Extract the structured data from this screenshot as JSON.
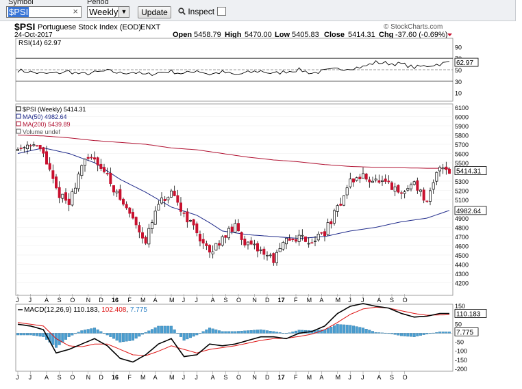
{
  "toolbar": {
    "symbol_label": "Symbol",
    "symbol_value": "$PSI",
    "clear_glyph": "×",
    "period_label": "Period",
    "period_value": "Weekly",
    "update_label": "Update",
    "inspect_label": "Inspect",
    "inspect_checked": false
  },
  "header": {
    "symbol": "$PSI",
    "name": "Portuguese Stock Index (EOD)",
    "exchange": "ENXT",
    "date": "24-Oct-2017",
    "open_label": "Open",
    "open_value": "5458.79",
    "high_label": "High",
    "high_value": "5470.00",
    "low_label": "Low",
    "low_value": "5405.83",
    "close_label": "Close",
    "close_value": "5414.31",
    "chg_label": "Chg",
    "chg_value": "-37.60 (-0.69%)",
    "watermark": "© StockCharts.com"
  },
  "colors": {
    "up_candle": "#ffffff",
    "down_candle": "#c8102e",
    "ma50": "#1f2a8a",
    "ma200": "#b01030",
    "macd_line": "#000000",
    "signal_line": "#dd1111",
    "histogram": "#4a9ed1",
    "macd_value_color": "#dd1111",
    "hist_value_color": "#2a7fc4"
  },
  "chart_data": [
    {
      "type": "line",
      "panel": "rsi",
      "label": "RSI(14) 62.97",
      "current_value": 62.97,
      "current_value_label": "62.97",
      "ylim": [
        0,
        100
      ],
      "reference_lines": [
        70,
        50,
        30
      ],
      "y_ticks": [
        90,
        70,
        50,
        30,
        10
      ],
      "x_weeks": [
        0,
        4,
        8,
        12,
        16,
        20,
        24,
        28,
        32,
        36,
        40,
        44,
        48,
        52,
        56,
        60,
        64,
        68,
        72,
        76,
        80,
        84,
        88,
        92,
        96,
        100,
        104,
        108,
        112,
        116,
        120,
        124,
        128,
        132,
        135
      ],
      "values": [
        49,
        46,
        43,
        44,
        47,
        42,
        45,
        48,
        44,
        46,
        41,
        45,
        47,
        43,
        49,
        42,
        46,
        41,
        45,
        48,
        43,
        47,
        50,
        44,
        48,
        51,
        53,
        55,
        63,
        61,
        60,
        54,
        57,
        60,
        63
      ]
    },
    {
      "type": "candlestick",
      "panel": "price",
      "legend": [
        {
          "name": "$PSI (Weekly) 5414.31",
          "color": "#000000"
        },
        {
          "name": "MA(50) 4982.64",
          "color": "#1f2a8a"
        },
        {
          "name": "MA(200) 5439.89",
          "color": "#b01030"
        },
        {
          "name": "Volume undef",
          "color": "#555555"
        }
      ],
      "ylim": [
        4100,
        6100
      ],
      "y_ticks": [
        6100,
        6000,
        5900,
        5800,
        5700,
        5600,
        5500,
        5400,
        5300,
        5200,
        5100,
        5000,
        4900,
        4800,
        4700,
        4600,
        4500,
        4400,
        4300,
        4200
      ],
      "value_tags": [
        {
          "value": 5414.31,
          "label": "5414.31"
        },
        {
          "value": 4982.64,
          "label": "4982.64"
        }
      ],
      "close_waypoints_weeks": [
        0,
        4,
        8,
        12,
        16,
        20,
        24,
        28,
        32,
        36,
        40,
        44,
        48,
        52,
        56,
        60,
        64,
        68,
        72,
        76,
        80,
        84,
        88,
        92,
        96,
        100,
        104,
        108,
        112,
        116,
        120,
        124,
        128,
        132,
        135
      ],
      "close_waypoints": [
        5650,
        5720,
        5600,
        5200,
        5050,
        5480,
        5560,
        5350,
        5100,
        4900,
        4650,
        5050,
        5150,
        4950,
        4750,
        4500,
        4700,
        4800,
        4600,
        4550,
        4450,
        4650,
        4700,
        4650,
        4750,
        5000,
        5300,
        5350,
        5300,
        5250,
        5150,
        5300,
        5050,
        5480,
        5414
      ],
      "ma50": {
        "x_weeks": [
          0,
          8,
          16,
          24,
          32,
          40,
          48,
          56,
          60,
          64,
          72,
          80,
          88,
          96,
          104,
          112,
          120,
          128,
          135
        ],
        "values": [
          5600,
          5660,
          5600,
          5500,
          5320,
          5180,
          5020,
          4930,
          4850,
          4760,
          4720,
          4700,
          4680,
          4700,
          4760,
          4800,
          4860,
          4900,
          4982.64
        ]
      },
      "ma200": {
        "x_weeks": [
          0,
          8,
          16,
          24,
          32,
          40,
          48,
          56,
          64,
          72,
          80,
          88,
          96,
          104,
          112,
          120,
          128,
          135
        ],
        "values": [
          5800,
          5790,
          5770,
          5740,
          5720,
          5700,
          5660,
          5640,
          5600,
          5560,
          5530,
          5510,
          5480,
          5460,
          5450,
          5445,
          5440,
          5439.89
        ]
      }
    },
    {
      "type": "line",
      "panel": "macd",
      "label_prefix": "MACD(12,26,9)",
      "macd_label": "110.183",
      "signal_label": "102.408",
      "hist_label": "7.775",
      "ylim": [
        -200,
        150
      ],
      "y_ticks": [
        150,
        100,
        50,
        0,
        -50,
        -100,
        -150,
        -200
      ],
      "value_tags": [
        {
          "value": 110.183,
          "label": "110.183"
        },
        {
          "value": 7.775,
          "label": "7.775"
        }
      ],
      "x_weeks": [
        0,
        4,
        8,
        12,
        16,
        20,
        24,
        28,
        32,
        36,
        40,
        44,
        48,
        52,
        56,
        60,
        64,
        68,
        72,
        76,
        80,
        84,
        88,
        92,
        96,
        100,
        104,
        108,
        112,
        116,
        120,
        124,
        128,
        132,
        135
      ],
      "macd": [
        50,
        40,
        20,
        -110,
        -90,
        -60,
        -30,
        -70,
        -140,
        -160,
        -120,
        -60,
        -30,
        -130,
        -120,
        -60,
        -70,
        -60,
        -40,
        -20,
        -20,
        -30,
        0,
        10,
        40,
        110,
        150,
        165,
        150,
        140,
        110,
        90,
        95,
        110,
        110.183
      ],
      "signal": [
        60,
        50,
        40,
        -30,
        -70,
        -75,
        -60,
        -60,
        -90,
        -120,
        -125,
        -100,
        -70,
        -90,
        -110,
        -90,
        -80,
        -70,
        -55,
        -40,
        -30,
        -28,
        -18,
        -5,
        20,
        60,
        105,
        135,
        145,
        140,
        125,
        110,
        100,
        102,
        102.408
      ]
    }
  ],
  "time_axis": {
    "labels": [
      {
        "text": "J",
        "week": 0
      },
      {
        "text": "J",
        "week": 4
      },
      {
        "text": "A",
        "week": 9
      },
      {
        "text": "S",
        "week": 13
      },
      {
        "text": "O",
        "week": 17
      },
      {
        "text": "N",
        "week": 22
      },
      {
        "text": "D",
        "week": 26
      },
      {
        "text": "16",
        "week": 30,
        "bold": true
      },
      {
        "text": "F",
        "week": 35
      },
      {
        "text": "M",
        "week": 39
      },
      {
        "text": "A",
        "week": 43
      },
      {
        "text": "M",
        "week": 48
      },
      {
        "text": "J",
        "week": 52
      },
      {
        "text": "J",
        "week": 56
      },
      {
        "text": "A",
        "week": 61
      },
      {
        "text": "S",
        "week": 65
      },
      {
        "text": "O",
        "week": 69
      },
      {
        "text": "N",
        "week": 74
      },
      {
        "text": "D",
        "week": 78
      },
      {
        "text": "17",
        "week": 82,
        "bold": true
      },
      {
        "text": "F",
        "week": 87
      },
      {
        "text": "M",
        "week": 91
      },
      {
        "text": "A",
        "week": 95
      },
      {
        "text": "M",
        "week": 100
      },
      {
        "text": "J",
        "week": 104
      },
      {
        "text": "J",
        "week": 108
      },
      {
        "text": "A",
        "week": 113
      },
      {
        "text": "S",
        "week": 117
      },
      {
        "text": "O",
        "week": 121
      }
    ]
  }
}
